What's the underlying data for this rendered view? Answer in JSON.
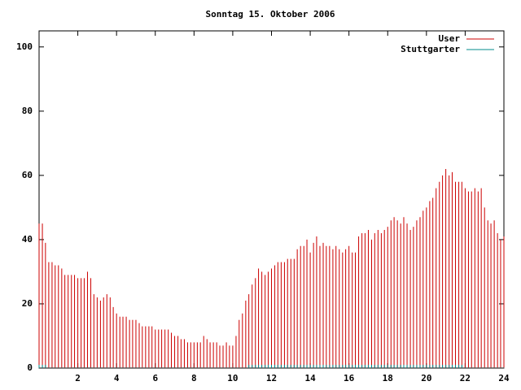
{
  "chart_data": {
    "type": "impulses",
    "title": "Sonntag 15. Oktober 2006",
    "x": [
      0,
      0.17,
      0.33,
      0.5,
      0.67,
      0.83,
      1,
      1.17,
      1.33,
      1.5,
      1.67,
      1.83,
      2,
      2.17,
      2.33,
      2.5,
      2.67,
      2.83,
      3,
      3.17,
      3.33,
      3.5,
      3.67,
      3.83,
      4,
      4.17,
      4.33,
      4.5,
      4.67,
      4.83,
      5,
      5.17,
      5.33,
      5.5,
      5.67,
      5.83,
      6,
      6.17,
      6.33,
      6.5,
      6.67,
      6.83,
      7,
      7.17,
      7.33,
      7.5,
      7.67,
      7.83,
      8,
      8.17,
      8.33,
      8.5,
      8.67,
      8.83,
      9,
      9.17,
      9.33,
      9.5,
      9.67,
      9.83,
      10,
      10.17,
      10.33,
      10.5,
      10.67,
      10.83,
      11,
      11.17,
      11.33,
      11.5,
      11.67,
      11.83,
      12,
      12.17,
      12.33,
      12.5,
      12.67,
      12.83,
      13,
      13.17,
      13.33,
      13.5,
      13.67,
      13.83,
      14,
      14.17,
      14.33,
      14.5,
      14.67,
      14.83,
      15,
      15.17,
      15.33,
      15.5,
      15.67,
      15.83,
      16,
      16.17,
      16.33,
      16.5,
      16.67,
      16.83,
      17,
      17.17,
      17.33,
      17.5,
      17.67,
      17.83,
      18,
      18.17,
      18.33,
      18.5,
      18.67,
      18.83,
      19,
      19.17,
      19.33,
      19.5,
      19.67,
      19.83,
      20,
      20.17,
      20.33,
      20.5,
      20.67,
      20.83,
      21,
      21.17,
      21.33,
      21.5,
      21.67,
      21.83,
      22,
      22.17,
      22.33,
      22.5,
      22.67,
      22.83,
      23,
      23.17,
      23.33,
      23.5,
      23.67,
      23.83,
      24
    ],
    "series": [
      {
        "name": "User",
        "color": "#cc0000",
        "values": [
          45,
          45,
          39,
          33,
          33,
          32,
          32,
          31,
          29,
          29,
          29,
          29,
          28,
          28,
          28,
          30,
          28,
          23,
          22,
          21,
          22,
          23,
          22,
          19,
          17,
          16,
          16,
          16,
          15,
          15,
          15,
          14,
          13,
          13,
          13,
          13,
          12,
          12,
          12,
          12,
          12,
          11,
          10,
          10,
          9,
          9,
          8,
          8,
          8,
          8,
          8,
          10,
          9,
          8,
          8,
          8,
          7,
          7,
          8,
          7,
          7,
          10,
          15,
          17,
          21,
          23,
          26,
          28,
          31,
          30,
          29,
          30,
          31,
          32,
          33,
          33,
          33,
          34,
          34,
          34,
          37,
          38,
          38,
          40,
          36,
          39,
          41,
          38,
          39,
          38,
          38,
          37,
          38,
          37,
          36,
          37,
          38,
          36,
          36,
          41,
          42,
          42,
          43,
          40,
          42,
          43,
          42,
          43,
          44,
          46,
          47,
          46,
          45,
          47,
          45,
          43,
          44,
          46,
          47,
          49,
          50,
          52,
          53,
          56,
          58,
          60,
          62,
          60,
          61,
          58,
          58,
          58,
          56,
          55,
          55,
          56,
          55,
          56,
          50,
          46,
          45,
          46,
          42,
          40,
          41
        ]
      },
      {
        "name": "Stuttgarter",
        "color": "#008b8b",
        "values": [
          1,
          1,
          1,
          0,
          0,
          0,
          0,
          0,
          0,
          0,
          0,
          0,
          0,
          0,
          0,
          0,
          0,
          0,
          0,
          0,
          0,
          0,
          0,
          0,
          0,
          0,
          0,
          0,
          0,
          0,
          0,
          0,
          0,
          0,
          0,
          0,
          0,
          0,
          0,
          0,
          0,
          0,
          0,
          0,
          0,
          0,
          0,
          0,
          0,
          0,
          0,
          0,
          0,
          0,
          0,
          0,
          0,
          0,
          0,
          0,
          0,
          0,
          0,
          0,
          0,
          1,
          1,
          1,
          1,
          1,
          1,
          1,
          1,
          1,
          1,
          1,
          1,
          1,
          1,
          1,
          1,
          1,
          1,
          1,
          1,
          1,
          1,
          1,
          1,
          1,
          1,
          1,
          1,
          1,
          1,
          1,
          1,
          1,
          1,
          1,
          1,
          1,
          1,
          1,
          1,
          1,
          1,
          1,
          1,
          1,
          1,
          1,
          1,
          1,
          1,
          1,
          1,
          1,
          1,
          1,
          1,
          1,
          1,
          1,
          1,
          1,
          1,
          1,
          1,
          1,
          1,
          1,
          0,
          0,
          0,
          0,
          0,
          0,
          0,
          0,
          0,
          0,
          0,
          0,
          0
        ]
      }
    ],
    "xlim": [
      0,
      24
    ],
    "xticks": [
      2,
      4,
      6,
      8,
      10,
      12,
      14,
      16,
      18,
      20,
      22,
      24
    ],
    "ylim": [
      0,
      105
    ],
    "yticks": [
      0,
      20,
      40,
      60,
      80,
      100
    ],
    "legend": "top-right"
  }
}
